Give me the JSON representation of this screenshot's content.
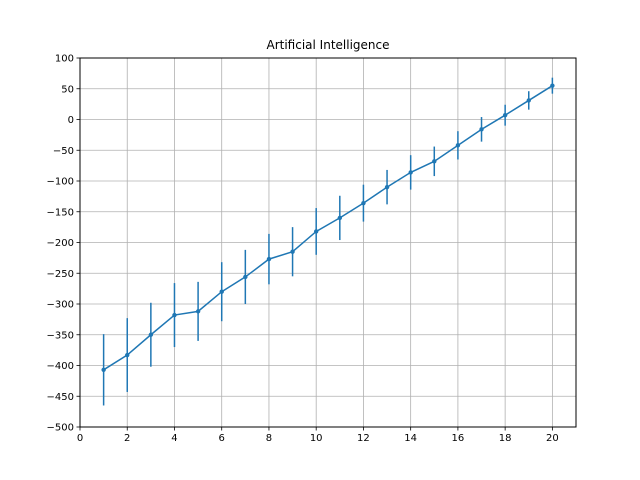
{
  "chart_data": {
    "type": "line",
    "title": "Artificial Intelligence",
    "xlabel": "",
    "ylabel": "",
    "xlim": [
      0,
      21
    ],
    "ylim": [
      -500,
      100
    ],
    "xticks": [
      0,
      2,
      4,
      6,
      8,
      10,
      12,
      14,
      16,
      18,
      20
    ],
    "yticks": [
      -500,
      -450,
      -400,
      -350,
      -300,
      -250,
      -200,
      -150,
      -100,
      -50,
      0,
      50,
      100
    ],
    "grid": true,
    "color": "#1f77b4",
    "series": [
      {
        "x": [
          1,
          2,
          3,
          4,
          5,
          6,
          7,
          8,
          9,
          10,
          11,
          12,
          13,
          14,
          15,
          16,
          17,
          18,
          19,
          20
        ],
        "y": [
          -407,
          -383,
          -350,
          -318,
          -312,
          -280,
          -256,
          -227,
          -215,
          -182,
          -160,
          -136,
          -110,
          -86,
          -68,
          -42,
          -16,
          7,
          31,
          55
        ],
        "error": [
          58,
          60,
          52,
          52,
          48,
          48,
          44,
          41,
          40,
          38,
          36,
          30,
          28,
          28,
          24,
          23,
          20,
          17,
          15,
          13
        ]
      }
    ]
  }
}
